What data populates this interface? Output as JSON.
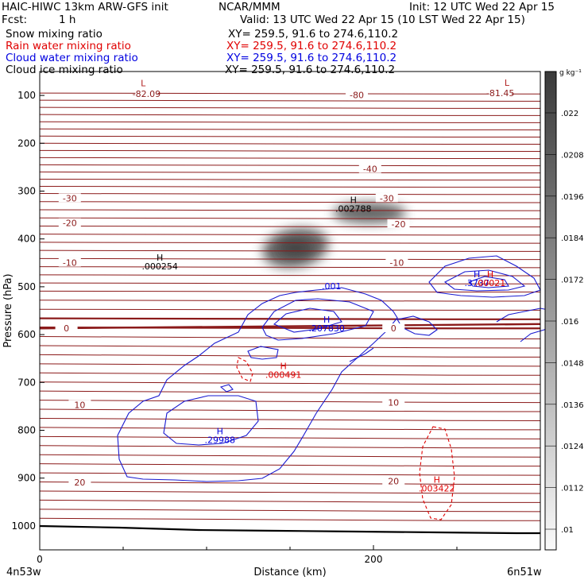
{
  "header": {
    "model": "HAIC-HIWC 13km ARW-GFS init",
    "org": "NCAR/MMM",
    "init": "Init: 12 UTC Wed 22 Apr 15",
    "fcst_label": "Fcst:",
    "fcst_value": "1 h",
    "valid": "Valid: 13 UTC Wed 22 Apr 15 (10 LST Wed 22 Apr 15)"
  },
  "fields": [
    {
      "name": "Snow mixing ratio",
      "xy": "XY= 259.5, 91.6 to 274.6,110.2",
      "color": "#000000"
    },
    {
      "name": "Rain water mixing ratio",
      "xy": "XY= 259.5, 91.6 to 274.6,110.2",
      "color": "#e00000"
    },
    {
      "name": "Cloud water mixing ratio",
      "xy": "XY= 259.5, 91.6 to 274.6,110.2",
      "color": "#0000e0"
    },
    {
      "name": "Cloud ice mixing ratio",
      "xy": "XY= 259.5, 91.6 to 274.6,110.2",
      "color": "#000000"
    }
  ],
  "chart_data": {
    "type": "contour",
    "xlabel": "Distance (km)",
    "ylabel": "Pressure (hPa)",
    "xlim": [
      0,
      300
    ],
    "ylim": [
      1050,
      50
    ],
    "xticks": [
      0,
      200
    ],
    "yticks": [
      100,
      200,
      300,
      400,
      500,
      600,
      700,
      800,
      900,
      1000
    ],
    "x_endpoints": {
      "left": "4n53w",
      "right": "6n51w"
    },
    "isotherm_color": "#8b1a1a",
    "isotherm_labels": [
      {
        "text": "-82.09",
        "x": 64,
        "p": 100
      },
      {
        "text": "-80",
        "x": 190,
        "p": 102
      },
      {
        "text": "-81.45",
        "x": 276,
        "p": 98
      },
      {
        "text": "-40",
        "x": 198,
        "p": 257
      },
      {
        "text": "-30",
        "x": 18,
        "p": 318
      },
      {
        "text": "-30",
        "x": 208,
        "p": 318
      },
      {
        "text": "-20",
        "x": 18,
        "p": 370
      },
      {
        "text": "-20",
        "x": 215,
        "p": 372
      },
      {
        "text": "-10",
        "x": 18,
        "p": 453
      },
      {
        "text": "-10",
        "x": 214,
        "p": 453
      },
      {
        "text": "0",
        "x": 16,
        "p": 590
      },
      {
        "text": "0",
        "x": 212,
        "p": 590
      },
      {
        "text": "10",
        "x": 24,
        "p": 750
      },
      {
        "text": "10",
        "x": 212,
        "p": 745
      },
      {
        "text": "20",
        "x": 24,
        "p": 912
      },
      {
        "text": "20",
        "x": 212,
        "p": 910
      }
    ],
    "extrema": [
      {
        "type": "L",
        "value": "",
        "x": 62,
        "p": 81,
        "color": "#b22222"
      },
      {
        "type": "L",
        "value": "",
        "x": 280,
        "p": 80,
        "color": "#b22222"
      },
      {
        "type": "H",
        "value": ".002788",
        "x": 188,
        "p": 325,
        "color": "#000000"
      },
      {
        "type": "H",
        "value": ".000254",
        "x": 72,
        "p": 445,
        "color": "#000000"
      },
      {
        "type": "H",
        "value": ".3737",
        "x": 262,
        "p": 480,
        "color": "#0000e0"
      },
      {
        "type": "H",
        "value": ".00021",
        "x": 270,
        "p": 480,
        "color": "#e00000"
      },
      {
        "type": "H",
        "value": ".207830",
        "x": 172,
        "p": 575,
        "color": "#0000e0"
      },
      {
        "type": "H",
        "value": ".000491",
        "x": 146,
        "p": 672,
        "color": "#e00000"
      },
      {
        "type": "H",
        "value": ".29988",
        "x": 108,
        "p": 808,
        "color": "#0000e0"
      },
      {
        "type": "H",
        "value": ".003422",
        "x": 238,
        "p": 910,
        "color": "#e00000"
      }
    ],
    "contour_label": {
      "text": ".001",
      "x": 180,
      "p": 510,
      "color": "#0000e0"
    },
    "colorbar": {
      "unit": "g kg⁻¹",
      "labels": [
        ".022",
        ".0208",
        ".0196",
        ".0184",
        ".0172",
        ".016",
        ".0148",
        ".0136",
        ".0124",
        ".0112",
        ".01"
      ]
    }
  }
}
